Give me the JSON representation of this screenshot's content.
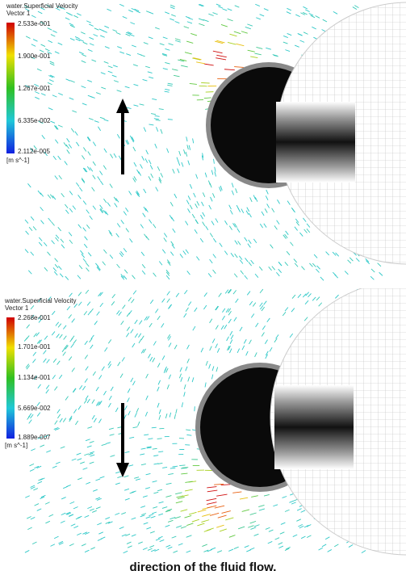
{
  "panels": [
    {
      "legend": {
        "title": "water.Superficial Velocity",
        "subtitle": "Vector 1",
        "labels": [
          "2.533e-001",
          "1.900e-001",
          "1.267e-001",
          "6.335e-002",
          "2.112e-005"
        ],
        "unit": "[m s^-1]"
      }
    },
    {
      "legend": {
        "title": "water.Superficial Velocity",
        "subtitle": "Vector 1",
        "labels": [
          "2.268e-001",
          "1.701e-001",
          "1.134e-001",
          "5.669e-002",
          "1.889e-007"
        ],
        "unit": "[m s^-1]"
      }
    }
  ],
  "caption": "direction of the fluid flow."
}
